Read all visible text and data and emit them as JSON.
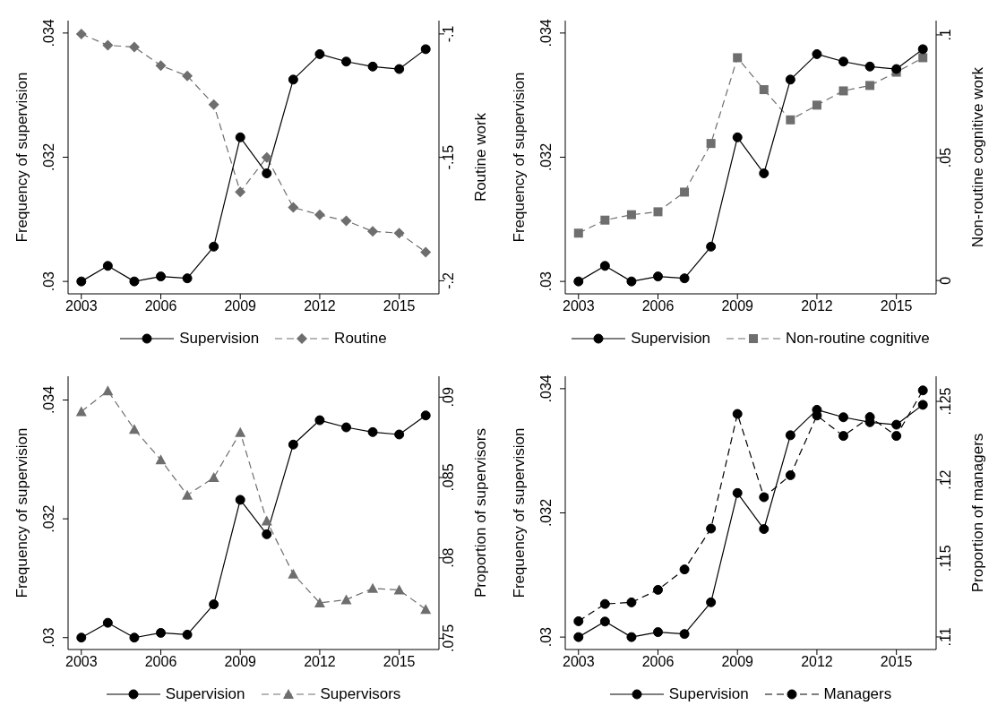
{
  "chart_data": [
    {
      "type": "line",
      "x": [
        2003,
        2004,
        2005,
        2006,
        2007,
        2008,
        2009,
        2010,
        2011,
        2012,
        2013,
        2014,
        2015,
        2016
      ],
      "ylabel": "Frequency of supervision",
      "y2label": "Routine work",
      "xlim": [
        2002.5,
        2016.5
      ],
      "xticks": [
        2003,
        2006,
        2009,
        2012,
        2015
      ],
      "ylim": [
        0.0298,
        0.0342
      ],
      "yticks": [
        {
          "value": 0.03,
          "label": ".03"
        },
        {
          "value": 0.032,
          "label": ".032"
        },
        {
          "value": 0.034,
          "label": ".034"
        }
      ],
      "y2lim": [
        -0.2053,
        -0.0946
      ],
      "y2ticks": [
        {
          "value": -0.2,
          "label": "-.2"
        },
        {
          "value": -0.15,
          "label": "-.15"
        },
        {
          "value": -0.1,
          "label": "-.1"
        }
      ],
      "grid": false,
      "legend": "bottom",
      "series": [
        {
          "name": "Supervision",
          "color": "#000000",
          "marker": "circle",
          "line_style": "solid",
          "values": [
            0.03,
            0.03025,
            0.03,
            0.03008,
            0.03005,
            0.03056,
            0.03232,
            0.03174,
            0.03325,
            0.03366,
            0.03354,
            0.03346,
            0.03342,
            0.03374
          ]
        },
        {
          "name": "Routine",
          "color": "#6e6e6e",
          "marker": "diamond",
          "line_style": "dashed",
          "axis": "y2",
          "values": [
            -0.1,
            -0.1046,
            -0.1053,
            -0.1128,
            -0.117,
            -0.1286,
            -0.164,
            -0.15,
            -0.1703,
            -0.1733,
            -0.1757,
            -0.18,
            -0.1807,
            -0.1884
          ]
        }
      ]
    },
    {
      "type": "line",
      "x": [
        2003,
        2004,
        2005,
        2006,
        2007,
        2008,
        2009,
        2010,
        2011,
        2012,
        2013,
        2014,
        2015,
        2016
      ],
      "ylabel": "Frequency of supervision",
      "y2label": "Non-routine cognitive work",
      "xlim": [
        2002.5,
        2016.5
      ],
      "xticks": [
        2003,
        2006,
        2009,
        2012,
        2015
      ],
      "ylim": [
        0.0298,
        0.0342
      ],
      "yticks": [
        {
          "value": 0.03,
          "label": ".03"
        },
        {
          "value": 0.032,
          "label": ".032"
        },
        {
          "value": 0.034,
          "label": ".034"
        }
      ],
      "y2lim": [
        -0.0054,
        0.1058
      ],
      "y2ticks": [
        0,
        {
          "value": 0.05,
          "label": ".05"
        },
        {
          "value": 0.1,
          "label": ".1"
        }
      ],
      "grid": false,
      "legend": "bottom",
      "series": [
        {
          "name": "Supervision",
          "color": "#000000",
          "marker": "circle",
          "line_style": "solid",
          "values": [
            0.03,
            0.03025,
            0.03,
            0.03008,
            0.03005,
            0.03056,
            0.03232,
            0.03174,
            0.03325,
            0.03366,
            0.03354,
            0.03346,
            0.03342,
            0.03374
          ]
        },
        {
          "name": "Non-routine cognitive",
          "color": "#6e6e6e",
          "marker": "square",
          "line_style": "dashed",
          "axis": "y2",
          "values": [
            0.0193,
            0.0246,
            0.0268,
            0.028,
            0.036,
            0.0558,
            0.0907,
            0.0777,
            0.0654,
            0.0714,
            0.0772,
            0.0794,
            0.0848,
            0.0907
          ]
        }
      ]
    },
    {
      "type": "line",
      "x": [
        2003,
        2004,
        2005,
        2006,
        2007,
        2008,
        2009,
        2010,
        2011,
        2012,
        2013,
        2014,
        2015,
        2016
      ],
      "ylabel": "Frequency of supervision",
      "y2label": "Proportion of supervisors",
      "xlim": [
        2002.5,
        2016.5
      ],
      "xticks": [
        2003,
        2006,
        2009,
        2012,
        2015
      ],
      "ylim": [
        0.0298,
        0.0344
      ],
      "yticks": [
        {
          "value": 0.03,
          "label": ".03"
        },
        {
          "value": 0.032,
          "label": ".032"
        },
        {
          "value": 0.034,
          "label": ".034"
        }
      ],
      "y2lim": [
        0.0743,
        0.0913
      ],
      "y2ticks": [
        {
          "value": 0.075,
          "label": ".075"
        },
        {
          "value": 0.08,
          "label": ".08"
        },
        {
          "value": 0.085,
          "label": ".085"
        },
        {
          "value": 0.09,
          "label": ".09"
        }
      ],
      "grid": false,
      "legend": "bottom",
      "series": [
        {
          "name": "Supervision",
          "color": "#000000",
          "marker": "circle",
          "line_style": "solid",
          "values": [
            0.03,
            0.03025,
            0.03,
            0.03008,
            0.03005,
            0.03056,
            0.03232,
            0.03174,
            0.03325,
            0.03366,
            0.03354,
            0.03346,
            0.03342,
            0.03374
          ]
        },
        {
          "name": "Supervisors",
          "color": "#6e6e6e",
          "marker": "triangle",
          "line_style": "dashed",
          "axis": "y2",
          "values": [
            0.0891,
            0.0904,
            0.088,
            0.0861,
            0.0839,
            0.085,
            0.0878,
            0.0823,
            0.079,
            0.0772,
            0.0774,
            0.0781,
            0.078,
            0.0768
          ]
        }
      ]
    },
    {
      "type": "line",
      "x": [
        2003,
        2004,
        2005,
        2006,
        2007,
        2008,
        2009,
        2010,
        2011,
        2012,
        2013,
        2014,
        2015,
        2016
      ],
      "ylabel": "Frequency of supervision",
      "y2label": "Proportion of managers",
      "xlim": [
        2002.5,
        2016.5
      ],
      "xticks": [
        2003,
        2006,
        2009,
        2012,
        2015
      ],
      "ylim": [
        0.0298,
        0.0342
      ],
      "yticks": [
        {
          "value": 0.03,
          "label": ".03"
        },
        {
          "value": 0.032,
          "label": ".032"
        },
        {
          "value": 0.034,
          "label": ".034"
        }
      ],
      "y2lim": [
        0.1092,
        0.1266
      ],
      "y2ticks": [
        {
          "value": 0.11,
          "label": ".11"
        },
        {
          "value": 0.115,
          "label": ".115"
        },
        {
          "value": 0.12,
          "label": ".12"
        },
        {
          "value": 0.125,
          "label": ".125"
        }
      ],
      "grid": false,
      "legend": "bottom",
      "series": [
        {
          "name": "Supervision",
          "color": "#000000",
          "marker": "circle",
          "line_style": "solid",
          "values": [
            0.03,
            0.03025,
            0.03,
            0.03008,
            0.03005,
            0.03056,
            0.03232,
            0.03174,
            0.03325,
            0.03366,
            0.03354,
            0.03346,
            0.03342,
            0.03374
          ]
        },
        {
          "name": "Managers",
          "color": "#000000",
          "marker": "circle",
          "line_style": "dashed",
          "axis": "y2",
          "values": [
            0.111,
            0.1121,
            0.1122,
            0.113,
            0.1143,
            0.1169,
            0.1242,
            0.1189,
            0.1203,
            0.1241,
            0.1228,
            0.124,
            0.1228,
            0.1257
          ]
        }
      ]
    }
  ]
}
